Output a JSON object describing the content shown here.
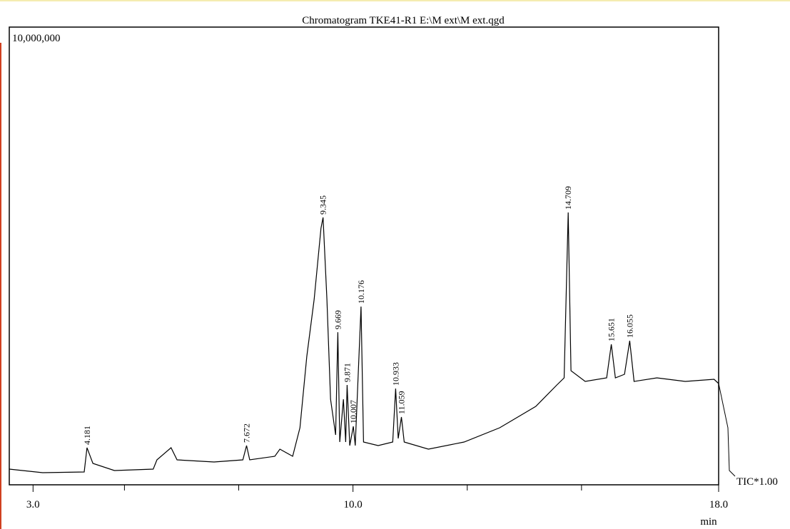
{
  "chart_data": {
    "type": "line",
    "title": "Chromatogram TKE41-R1 E:\\M  ext\\M  ext.qgd",
    "x_label": "min",
    "annotation": "TIC*1.00",
    "color": "#000000",
    "xlim": [
      2.48,
      18.0
    ],
    "xticks": [
      {
        "value": 3,
        "label": "3.0"
      },
      {
        "value": 10,
        "label": "10.0"
      },
      {
        "value": 18,
        "label": "18.0"
      }
    ],
    "x_minor_ticks": [
      5,
      7.5,
      12.5,
      15
    ],
    "ylim": [
      0,
      10000000
    ],
    "yticks": [
      {
        "value": 10000000,
        "label": "10,000,000"
      }
    ],
    "x": [
      2.48,
      3.21,
      4.12,
      4.181,
      4.31,
      4.78,
      5.63,
      5.71,
      6.02,
      6.15,
      6.96,
      7.59,
      7.672,
      7.74,
      8.29,
      8.4,
      8.68,
      8.84,
      8.99,
      9.15,
      9.3,
      9.345,
      9.43,
      9.51,
      9.62,
      9.669,
      9.71,
      9.79,
      9.84,
      9.871,
      9.93,
      10.007,
      10.05,
      10.176,
      10.23,
      10.55,
      10.87,
      10.933,
      10.99,
      11.059,
      11.12,
      11.65,
      12.43,
      13.21,
      14.0,
      14.46,
      14.62,
      14.709,
      14.77,
      15.08,
      15.55,
      15.651,
      15.74,
      15.94,
      16.055,
      16.15,
      16.65,
      17.27,
      17.9,
      18.0
    ],
    "values": [
      343000,
      265000,
      280000,
      810000,
      467000,
      312000,
      343000,
      545000,
      810000,
      545000,
      498000,
      545000,
      857000,
      545000,
      623000,
      779000,
      623000,
      1246000,
      2804000,
      4050000,
      5607000,
      5841000,
      4050000,
      1869000,
      1090000,
      3333000,
      935000,
      1869000,
      935000,
      2181000,
      857000,
      1277000,
      857000,
      3894000,
      935000,
      857000,
      935000,
      2103000,
      1012000,
      1480000,
      935000,
      779000,
      935000,
      1246000,
      1713000,
      2181000,
      2336000,
      5950000,
      2492000,
      2259000,
      2336000,
      3068000,
      2336000,
      2414000,
      3146000,
      2259000,
      2336000,
      2259000,
      2305000,
      2212000
    ],
    "peaks": [
      4.181,
      7.672,
      9.345,
      9.669,
      9.871,
      10.007,
      10.176,
      10.933,
      11.059,
      14.709,
      15.651,
      16.055
    ]
  }
}
